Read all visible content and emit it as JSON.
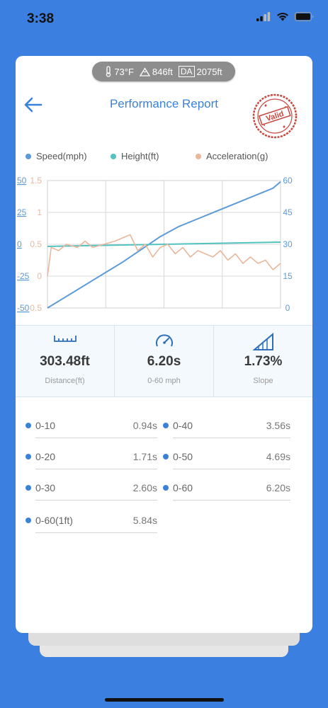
{
  "status_bar": {
    "time": "3:38"
  },
  "weather": {
    "temperature": "73°F",
    "altitude": "846ft",
    "da_label": "DA",
    "density_altitude": "2075ft"
  },
  "header": {
    "title": "Performance Report",
    "stamp_text": "Valid"
  },
  "chart_data": {
    "type": "line",
    "series": [
      {
        "name": "Speed(mph)",
        "color": "#5b9bd8",
        "axis": "left-blue",
        "x": [
          0,
          0.5,
          1,
          1.5,
          2,
          2.5,
          3,
          3.5,
          4,
          4.5,
          5,
          5.5,
          6,
          6.2
        ],
        "y": [
          -50,
          -41,
          -32,
          -23,
          -14,
          -4,
          6,
          14,
          20,
          26,
          32,
          38,
          44,
          49
        ]
      },
      {
        "name": "Height(ft)",
        "color": "#53c3c0",
        "axis": "right-blue",
        "x": [
          0,
          6.2
        ],
        "y": [
          29,
          31
        ]
      },
      {
        "name": "Acceleration(g)",
        "color": "#e9b79a",
        "axis": "left-orange",
        "x": [
          0,
          0.1,
          0.3,
          0.5,
          0.8,
          1.0,
          1.2,
          1.5,
          1.8,
          2.0,
          2.2,
          2.4,
          2.6,
          2.8,
          3.0,
          3.2,
          3.4,
          3.6,
          3.8,
          4.0,
          4.2,
          4.4,
          4.6,
          4.8,
          5.0,
          5.2,
          5.4,
          5.6,
          5.8,
          6.0,
          6.2
        ],
        "y": [
          0,
          0.45,
          0.4,
          0.5,
          0.45,
          0.55,
          0.45,
          0.5,
          0.55,
          0.6,
          0.65,
          0.4,
          0.5,
          0.3,
          0.45,
          0.5,
          0.35,
          0.45,
          0.3,
          0.4,
          0.35,
          0.3,
          0.4,
          0.25,
          0.35,
          0.2,
          0.3,
          0.2,
          0.25,
          0.1,
          0.2
        ]
      }
    ],
    "left_blue_ticks": [
      "50",
      "25",
      "0",
      "-25",
      "-50"
    ],
    "left_orange_ticks": [
      "1.5",
      "1",
      "0.5",
      "0",
      "-0.5"
    ],
    "right_ticks": [
      "60",
      "45",
      "30",
      "15",
      "0"
    ],
    "left_blue_range": [
      -50,
      50
    ],
    "left_orange_range": [
      -0.5,
      1.5
    ],
    "right_range": [
      0,
      60
    ],
    "x_range": [
      0,
      6.2
    ],
    "grid": true,
    "legend_position": "top"
  },
  "stats": [
    {
      "value": "303.48ft",
      "label": "Distance(ft)",
      "icon": "ruler-icon"
    },
    {
      "value": "6.20s",
      "label": "0-60 mph",
      "icon": "speedometer-icon"
    },
    {
      "value": "1.73%",
      "label": "Slope",
      "icon": "slope-icon"
    }
  ],
  "splits": [
    {
      "label": "0-10",
      "time": "0.94s"
    },
    {
      "label": "0-40",
      "time": "3.56s"
    },
    {
      "label": "0-20",
      "time": "1.71s"
    },
    {
      "label": "0-50",
      "time": "4.69s"
    },
    {
      "label": "0-30",
      "time": "2.60s"
    },
    {
      "label": "0-60",
      "time": "6.20s"
    },
    {
      "label": "0-60(1ft)",
      "time": "5.84s"
    }
  ]
}
